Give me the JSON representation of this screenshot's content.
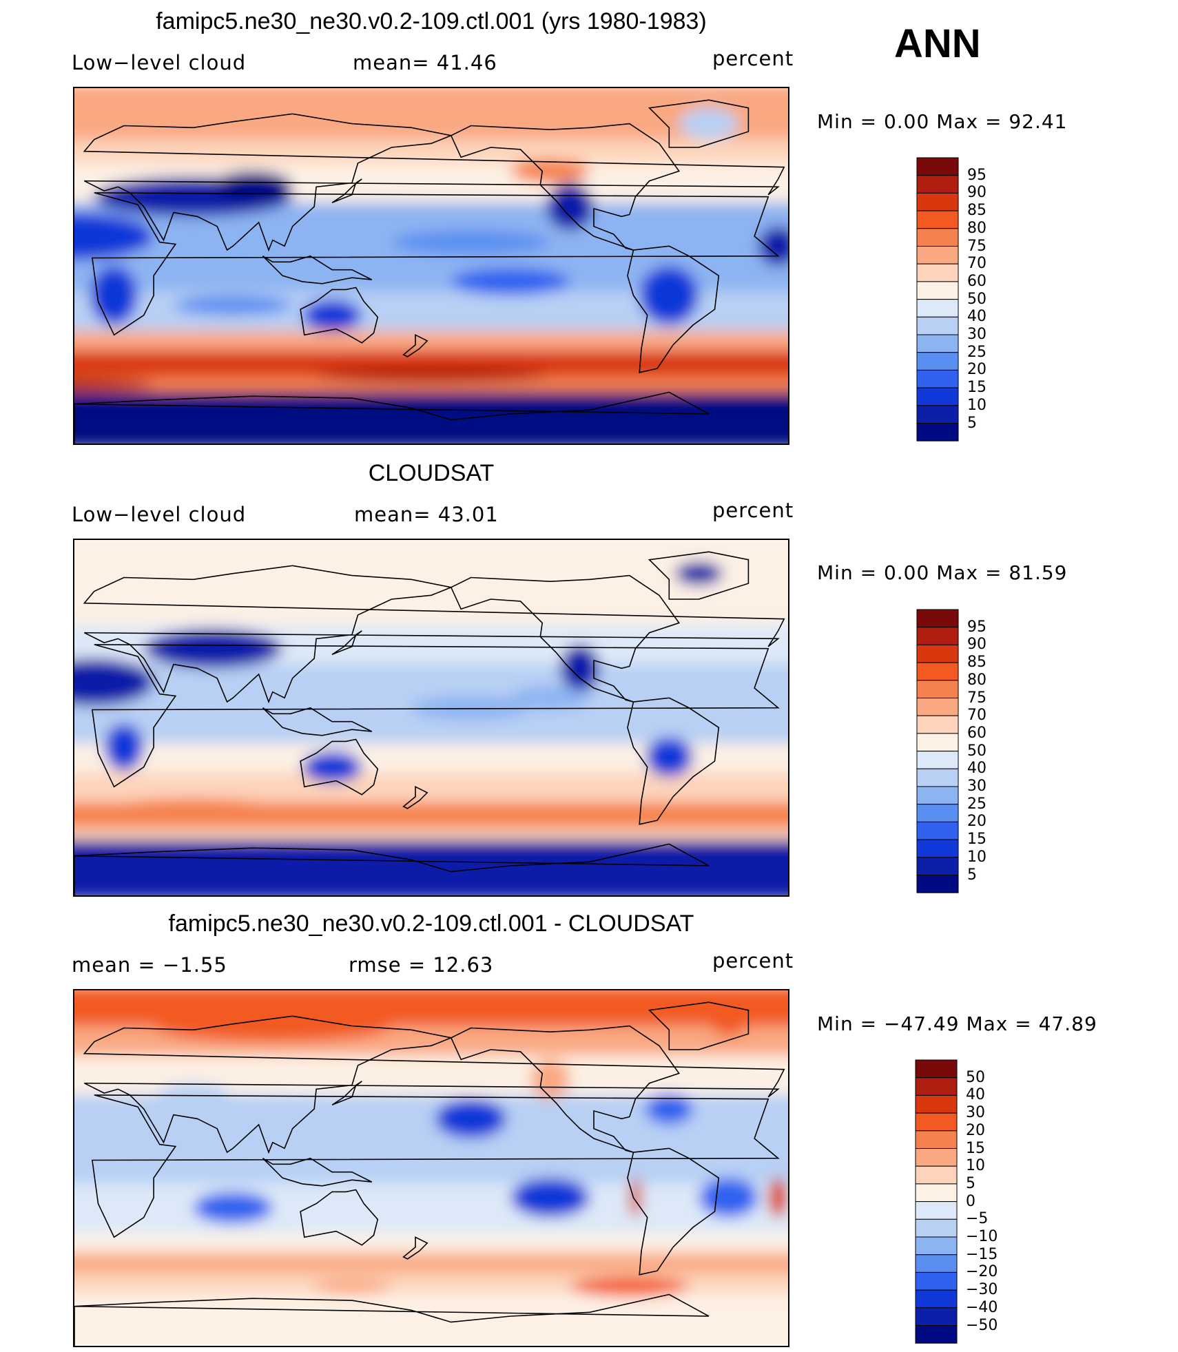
{
  "season": "ANN",
  "panels": [
    {
      "id": "model",
      "title": "famipc5.ne30_ne30.v0.2-109.ctl.001 (yrs 1980-1983)",
      "left_label": "Low−level cloud",
      "center_label": "mean=   41.46",
      "units": "percent",
      "minmax": "Min  =     0.00  Max  =    92.41",
      "colorbar": {
        "levels": [
          "95",
          "90",
          "85",
          "80",
          "75",
          "70",
          "60",
          "50",
          "40",
          "30",
          "25",
          "20",
          "15",
          "10",
          "5"
        ],
        "colors": [
          "#7a0a0a",
          "#b01e10",
          "#d9380f",
          "#f25a22",
          "#f5824e",
          "#f9a882",
          "#fdd4bb",
          "#fdf0e4",
          "#dde9f8",
          "#b8d0f4",
          "#8db4f2",
          "#5a8ef0",
          "#2f62ef",
          "#1138d8",
          "#0c1fa8",
          "#000a82"
        ]
      },
      "map_type": "model"
    },
    {
      "id": "obs",
      "title": "CLOUDSAT",
      "left_label": "Low−level cloud",
      "center_label": "mean=   43.01",
      "units": "percent",
      "minmax": "Min  =     0.00  Max  =    81.59",
      "colorbar": {
        "levels": [
          "95",
          "90",
          "85",
          "80",
          "75",
          "70",
          "60",
          "50",
          "40",
          "30",
          "25",
          "20",
          "15",
          "10",
          "5"
        ],
        "colors": [
          "#7a0a0a",
          "#b01e10",
          "#d9380f",
          "#f25a22",
          "#f5824e",
          "#f9a882",
          "#fdd4bb",
          "#fdf0e4",
          "#dde9f8",
          "#b8d0f4",
          "#8db4f2",
          "#5a8ef0",
          "#2f62ef",
          "#1138d8",
          "#0c1fa8",
          "#000a82"
        ]
      },
      "map_type": "obs"
    },
    {
      "id": "diff",
      "title": "famipc5.ne30_ne30.v0.2-109.ctl.001 - CLOUDSAT",
      "left_label": "mean  =    −1.55",
      "center_label": "rmse  =    12.63",
      "units": "percent",
      "minmax": "Min  = −47.49  Max  =    47.89",
      "colorbar": {
        "levels": [
          "50",
          "40",
          "30",
          "20",
          "15",
          "10",
          "5",
          "0",
          "−5",
          "−10",
          "−15",
          "−20",
          "−30",
          "−40",
          "−50"
        ],
        "colors": [
          "#7a0a0a",
          "#b01e10",
          "#d9380f",
          "#f25a22",
          "#f5824e",
          "#f9a882",
          "#fdd4bb",
          "#fdf0e4",
          "#dde9f8",
          "#b8d0f4",
          "#8db4f2",
          "#5a8ef0",
          "#2f62ef",
          "#1138d8",
          "#0c1fa8",
          "#000a82"
        ]
      },
      "map_type": "diff"
    }
  ]
}
